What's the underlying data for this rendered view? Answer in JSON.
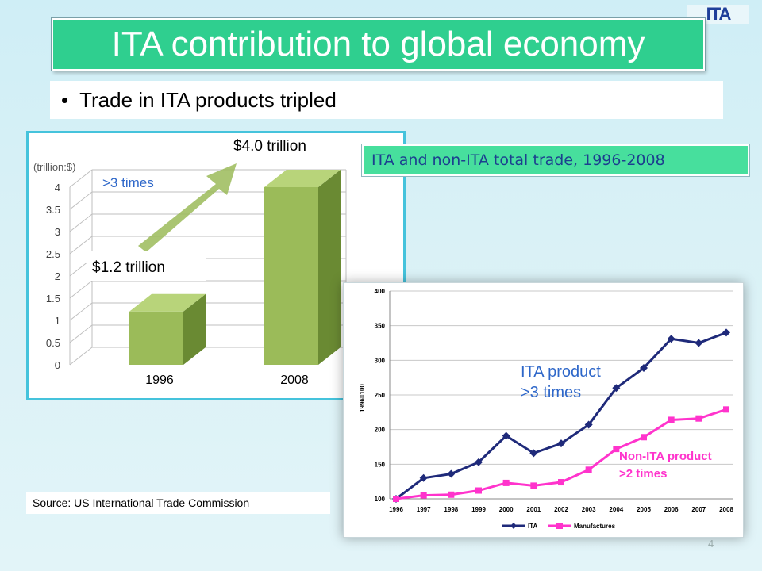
{
  "logo_text": "ITA",
  "title": "ITA contribution to global economy",
  "bullet": "Trade in ITA products tripled",
  "source": "Source: US International Trade Commission",
  "page_number": "4",
  "colors": {
    "title_bg": "#2fcf8f",
    "label_bg": "#47df9d",
    "bar_green": "#9bbb59",
    "ita_line": "#1f2a7a",
    "manufactures_line": "#ff33cc",
    "annotation_blue": "#2e67c9",
    "annotation_magenta": "#ff33cc"
  },
  "chart_data": [
    {
      "type": "bar",
      "unit_label": "(trillion:$)",
      "categories": [
        "1996",
        "2008"
      ],
      "values": [
        1.2,
        4.0
      ],
      "data_labels": [
        "$1.2 trillion",
        "$4.0 trillion"
      ],
      "annotation": ">3 times",
      "ylim": [
        0,
        4
      ],
      "yticks": [
        "0",
        "0.5",
        "1",
        "1.5",
        "2",
        "2.5",
        "3",
        "3.5",
        "4"
      ],
      "grid": true
    },
    {
      "type": "line",
      "title": "ITA and non-ITA total trade, 1996-2008",
      "ylabel": "1996=100",
      "x": [
        "1996",
        "1997",
        "1998",
        "1999",
        "2000",
        "2001",
        "2002",
        "2003",
        "2004",
        "2005",
        "2006",
        "2007",
        "2008"
      ],
      "ylim": [
        100,
        400
      ],
      "yticks": [
        "100",
        "150",
        "200",
        "250",
        "300",
        "350",
        "400"
      ],
      "series": [
        {
          "name": "ITA",
          "values": [
            100,
            130,
            136,
            153,
            191,
            166,
            180,
            207,
            260,
            289,
            331,
            325,
            340
          ]
        },
        {
          "name": "Manufactures",
          "values": [
            100,
            105,
            106,
            112,
            123,
            119,
            124,
            142,
            172,
            189,
            214,
            216,
            229
          ]
        }
      ],
      "annotations": [
        "ITA product >3 times",
        "Non-ITA product >2 times"
      ],
      "legend": "bottom"
    }
  ]
}
